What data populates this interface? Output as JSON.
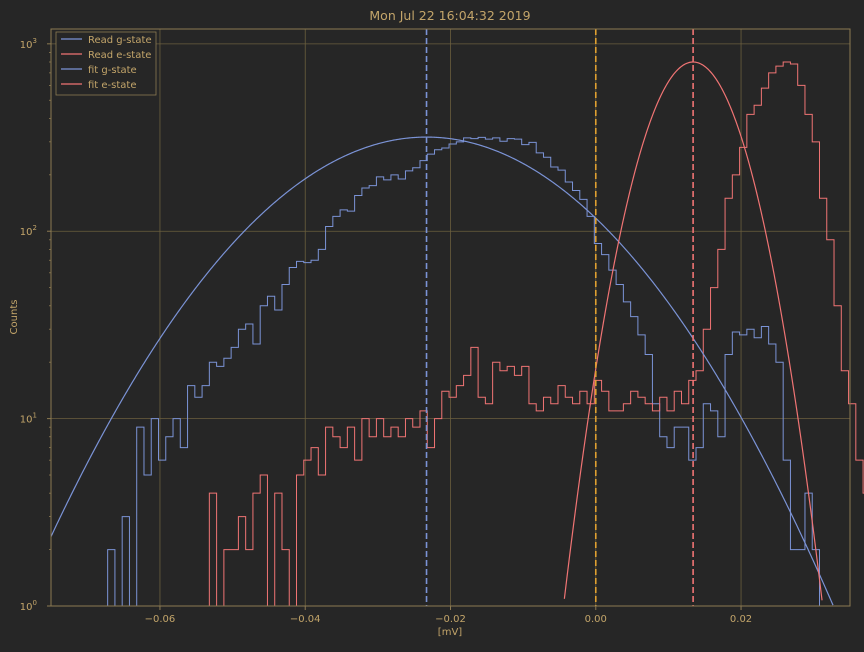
{
  "chart_data": {
    "type": "line",
    "title": "Mon Jul 22 16:04:32 2019",
    "xlabel": "[mV]",
    "ylabel": "Counts",
    "xlim": [
      -0.075,
      0.035
    ],
    "ylim": [
      1,
      1200
    ],
    "yscale": "log",
    "grid": true,
    "legend_position": "top-left",
    "x_ticks": [
      {
        "value": -0.06,
        "label": "−0.06"
      },
      {
        "value": -0.04,
        "label": "−0.04"
      },
      {
        "value": -0.02,
        "label": "−0.02"
      },
      {
        "value": 0.0,
        "label": "0.00"
      },
      {
        "value": 0.02,
        "label": "0.02"
      }
    ],
    "y_ticks": [
      {
        "value": 1,
        "base": "10",
        "exp": "0"
      },
      {
        "value": 10,
        "base": "10",
        "exp": "1"
      },
      {
        "value": 100,
        "base": "10",
        "exp": "2"
      },
      {
        "value": 1000,
        "base": "10",
        "exp": "3"
      }
    ],
    "colors": {
      "background": "#262626",
      "axis": "#8c7a52",
      "text": "#c3a56a",
      "grid": "#6b5f3e",
      "g_state": "#7b93d6",
      "e_state": "#f07474",
      "threshold": "#e0a030"
    },
    "series": [
      {
        "name": "Read g-state",
        "kind": "histogram",
        "color": "#7b93d6",
        "bin_start": -0.0672,
        "bin_width": 0.001,
        "values": [
          2,
          1,
          3,
          1,
          9,
          5,
          10,
          6,
          8,
          10,
          7,
          15,
          13,
          15,
          20,
          19,
          21,
          24,
          30,
          32,
          25,
          40,
          45,
          38,
          52,
          64,
          69,
          68,
          70,
          80,
          106,
          120,
          130,
          128,
          155,
          170,
          175,
          195,
          188,
          200,
          190,
          210,
          218,
          238,
          258,
          272,
          278,
          292,
          300,
          315,
          312,
          317,
          310,
          315,
          302,
          312,
          310,
          290,
          298,
          262,
          248,
          220,
          212,
          183,
          165,
          148,
          120,
          86,
          75,
          62,
          52,
          42,
          35,
          28,
          22,
          12,
          8,
          7,
          9,
          9,
          6,
          7,
          12,
          11,
          8,
          22,
          29,
          28,
          30,
          27,
          31,
          25,
          20,
          6,
          2,
          2,
          4,
          2,
          1,
          1,
          1
        ]
      },
      {
        "name": "Read e-state",
        "kind": "histogram",
        "color": "#f07474",
        "bin_start": -0.0592,
        "bin_width": 0.001,
        "values": [
          1,
          1,
          1,
          1,
          1,
          1,
          4,
          1,
          2,
          2,
          3,
          2,
          4,
          5,
          1,
          4,
          2,
          1,
          5,
          6,
          7,
          5,
          9,
          8,
          7,
          9,
          6,
          10,
          8,
          10,
          8,
          9,
          8,
          10,
          9,
          11,
          7,
          10,
          14,
          13,
          15,
          17,
          24,
          13,
          12,
          20,
          18,
          19,
          17,
          19,
          12,
          11,
          13,
          12,
          15,
          13,
          12,
          14,
          12,
          16,
          14,
          11,
          11,
          12,
          14,
          13,
          12,
          11,
          13,
          11,
          14,
          12,
          16,
          18,
          30,
          50,
          80,
          150,
          200,
          280,
          420,
          470,
          580,
          700,
          760,
          800,
          780,
          600,
          420,
          300,
          150,
          90,
          40,
          18,
          12,
          6,
          4
        ]
      },
      {
        "name": "fit g-state",
        "kind": "gaussian",
        "color": "#7b93d6",
        "amplitude": 318,
        "mean": -0.0233,
        "sigma": 0.0165
      },
      {
        "name": "fit e-state",
        "kind": "gaussian",
        "color": "#f07474",
        "amplitude": 800,
        "mean": 0.0134,
        "sigma": 0.00488
      }
    ],
    "vlines": [
      {
        "x": -0.0233,
        "color": "#7b93d6"
      },
      {
        "x": 0.0,
        "color": "#e0a030"
      },
      {
        "x": 0.0134,
        "color": "#f07474"
      }
    ]
  }
}
